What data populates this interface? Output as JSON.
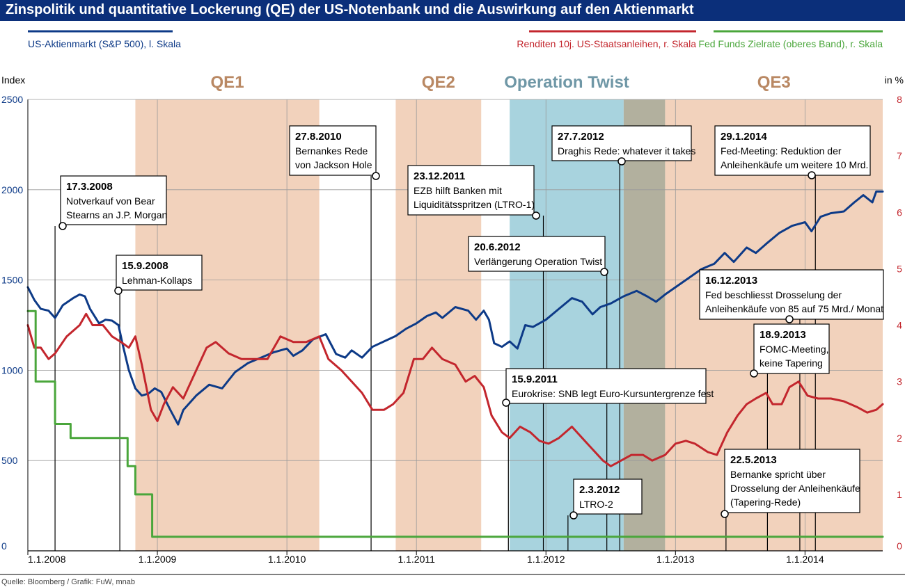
{
  "title": "Zinspolitik und quantitative Lockerung (QE) der US-Notenbank und die Auswirkung auf den Aktienmarkt",
  "source": "Quelle: Bloomberg / Grafik: FuW, mnab",
  "colors": {
    "title_bg": "#0b2f7a",
    "sp500": "#0d3a87",
    "yield": "#c3262d",
    "fed": "#4aa63b",
    "qe": "#f2d2bc",
    "twist": "#a8d3de",
    "overlap": "#b2b09e",
    "period_label_qe": "#b98863",
    "period_label_twist": "#6f97a6"
  },
  "chart_data": {
    "type": "line",
    "x_range": [
      2008.0,
      2014.6
    ],
    "left_axis": {
      "label": "Index",
      "ticks": [
        "0",
        "500",
        "1000",
        "1500",
        "2000",
        "2500"
      ],
      "range": [
        0,
        2500
      ]
    },
    "right_axis": {
      "label": "in %",
      "ticks": [
        "0",
        "1",
        "2",
        "3",
        "4",
        "5",
        "6",
        "7",
        "8"
      ],
      "range": [
        0,
        8
      ]
    },
    "x_ticks": [
      {
        "label": "1.1.2008",
        "x": 2008.0
      },
      {
        "label": "1.1.2009",
        "x": 2009.0
      },
      {
        "label": "1.1.2010",
        "x": 2010.0
      },
      {
        "label": "1.1.2011",
        "x": 2011.0
      },
      {
        "label": "1.1.2012",
        "x": 2012.0
      },
      {
        "label": "1.1.2013",
        "x": 2013.0
      },
      {
        "label": "1.1.2014",
        "x": 2014.0
      }
    ],
    "legend": [
      {
        "name": "US-Aktienmarkt (S&P 500), l. Skala",
        "color": "#0d3a87"
      },
      {
        "name": "Renditen 10j. US-Staatsanleihen, r. Skala",
        "color": "#c3262d"
      },
      {
        "name": "Fed Funds Zielrate (oberes Band), r. Skala",
        "color": "#4aa63b"
      }
    ],
    "periods": [
      {
        "label": "QE1",
        "start": 2008.83,
        "end": 2010.25,
        "color": "#f2d2bc",
        "label_color": "#b98863"
      },
      {
        "label": "QE2",
        "start": 2010.84,
        "end": 2011.5,
        "color": "#f2d2bc",
        "label_color": "#b98863"
      },
      {
        "label": "Operation Twist",
        "start": 2011.72,
        "end": 2012.6,
        "color": "#a8d3de",
        "label_color": "#6f97a6"
      },
      {
        "label": "",
        "start": 2012.6,
        "end": 2012.92,
        "color": "#b2b09e",
        "label_color": "#000000"
      },
      {
        "label": "QE3",
        "start": 2012.92,
        "end": 2014.6,
        "color": "#f2d2bc",
        "label_color": "#b98863"
      }
    ],
    "series": [
      {
        "name": "US-Aktienmarkt (S&P 500)",
        "axis": "left",
        "color": "#0d3a87",
        "points": [
          [
            2008.0,
            1460
          ],
          [
            2008.05,
            1390
          ],
          [
            2008.1,
            1340
          ],
          [
            2008.16,
            1330
          ],
          [
            2008.21,
            1290
          ],
          [
            2008.27,
            1360
          ],
          [
            2008.35,
            1400
          ],
          [
            2008.4,
            1420
          ],
          [
            2008.44,
            1410
          ],
          [
            2008.48,
            1340
          ],
          [
            2008.55,
            1260
          ],
          [
            2008.6,
            1280
          ],
          [
            2008.65,
            1275
          ],
          [
            2008.7,
            1250
          ],
          [
            2008.73,
            1150
          ],
          [
            2008.78,
            1000
          ],
          [
            2008.83,
            900
          ],
          [
            2008.88,
            860
          ],
          [
            2008.93,
            870
          ],
          [
            2008.98,
            900
          ],
          [
            2009.03,
            880
          ],
          [
            2009.1,
            780
          ],
          [
            2009.16,
            700
          ],
          [
            2009.2,
            780
          ],
          [
            2009.3,
            860
          ],
          [
            2009.4,
            920
          ],
          [
            2009.5,
            900
          ],
          [
            2009.6,
            990
          ],
          [
            2009.7,
            1040
          ],
          [
            2009.8,
            1070
          ],
          [
            2009.9,
            1100
          ],
          [
            2010.0,
            1120
          ],
          [
            2010.05,
            1080
          ],
          [
            2010.12,
            1110
          ],
          [
            2010.2,
            1170
          ],
          [
            2010.3,
            1200
          ],
          [
            2010.38,
            1090
          ],
          [
            2010.45,
            1070
          ],
          [
            2010.5,
            1110
          ],
          [
            2010.58,
            1070
          ],
          [
            2010.66,
            1130
          ],
          [
            2010.75,
            1160
          ],
          [
            2010.84,
            1190
          ],
          [
            2010.92,
            1230
          ],
          [
            2011.0,
            1260
          ],
          [
            2011.08,
            1300
          ],
          [
            2011.15,
            1320
          ],
          [
            2011.2,
            1290
          ],
          [
            2011.3,
            1350
          ],
          [
            2011.4,
            1330
          ],
          [
            2011.46,
            1280
          ],
          [
            2011.52,
            1330
          ],
          [
            2011.56,
            1280
          ],
          [
            2011.6,
            1150
          ],
          [
            2011.66,
            1130
          ],
          [
            2011.72,
            1160
          ],
          [
            2011.78,
            1120
          ],
          [
            2011.84,
            1250
          ],
          [
            2011.9,
            1240
          ],
          [
            2012.0,
            1280
          ],
          [
            2012.1,
            1340
          ],
          [
            2012.2,
            1400
          ],
          [
            2012.28,
            1380
          ],
          [
            2012.36,
            1310
          ],
          [
            2012.42,
            1350
          ],
          [
            2012.5,
            1370
          ],
          [
            2012.6,
            1410
          ],
          [
            2012.7,
            1440
          ],
          [
            2012.78,
            1410
          ],
          [
            2012.85,
            1380
          ],
          [
            2012.92,
            1420
          ],
          [
            2013.0,
            1460
          ],
          [
            2013.1,
            1510
          ],
          [
            2013.2,
            1560
          ],
          [
            2013.3,
            1590
          ],
          [
            2013.38,
            1650
          ],
          [
            2013.45,
            1600
          ],
          [
            2013.55,
            1680
          ],
          [
            2013.62,
            1650
          ],
          [
            2013.7,
            1700
          ],
          [
            2013.8,
            1760
          ],
          [
            2013.9,
            1800
          ],
          [
            2014.0,
            1820
          ],
          [
            2014.05,
            1770
          ],
          [
            2014.12,
            1850
          ],
          [
            2014.2,
            1870
          ],
          [
            2014.3,
            1880
          ],
          [
            2014.38,
            1930
          ],
          [
            2014.45,
            1970
          ],
          [
            2014.52,
            1930
          ],
          [
            2014.55,
            1990
          ],
          [
            2014.6,
            1990
          ]
        ]
      },
      {
        "name": "Renditen 10j. US-Staatsanleihen",
        "axis": "right",
        "color": "#c3262d",
        "points": [
          [
            2008.0,
            4.0
          ],
          [
            2008.05,
            3.6
          ],
          [
            2008.1,
            3.6
          ],
          [
            2008.16,
            3.4
          ],
          [
            2008.21,
            3.5
          ],
          [
            2008.3,
            3.8
          ],
          [
            2008.4,
            4.0
          ],
          [
            2008.45,
            4.2
          ],
          [
            2008.5,
            4.0
          ],
          [
            2008.58,
            4.0
          ],
          [
            2008.65,
            3.8
          ],
          [
            2008.72,
            3.7
          ],
          [
            2008.78,
            3.6
          ],
          [
            2008.83,
            3.8
          ],
          [
            2008.88,
            3.3
          ],
          [
            2008.95,
            2.5
          ],
          [
            2009.0,
            2.3
          ],
          [
            2009.05,
            2.6
          ],
          [
            2009.12,
            2.9
          ],
          [
            2009.2,
            2.7
          ],
          [
            2009.3,
            3.2
          ],
          [
            2009.38,
            3.6
          ],
          [
            2009.45,
            3.7
          ],
          [
            2009.55,
            3.5
          ],
          [
            2009.65,
            3.4
          ],
          [
            2009.75,
            3.4
          ],
          [
            2009.85,
            3.4
          ],
          [
            2009.95,
            3.8
          ],
          [
            2010.05,
            3.7
          ],
          [
            2010.15,
            3.7
          ],
          [
            2010.25,
            3.8
          ],
          [
            2010.32,
            3.4
          ],
          [
            2010.42,
            3.2
          ],
          [
            2010.5,
            3.0
          ],
          [
            2010.58,
            2.8
          ],
          [
            2010.66,
            2.5
          ],
          [
            2010.75,
            2.5
          ],
          [
            2010.82,
            2.6
          ],
          [
            2010.9,
            2.8
          ],
          [
            2010.98,
            3.4
          ],
          [
            2011.05,
            3.4
          ],
          [
            2011.12,
            3.6
          ],
          [
            2011.2,
            3.4
          ],
          [
            2011.3,
            3.3
          ],
          [
            2011.38,
            3.0
          ],
          [
            2011.45,
            3.1
          ],
          [
            2011.52,
            2.9
          ],
          [
            2011.58,
            2.4
          ],
          [
            2011.66,
            2.1
          ],
          [
            2011.72,
            2.0
          ],
          [
            2011.8,
            2.2
          ],
          [
            2011.88,
            2.1
          ],
          [
            2011.95,
            1.95
          ],
          [
            2012.02,
            1.9
          ],
          [
            2012.1,
            2.0
          ],
          [
            2012.2,
            2.2
          ],
          [
            2012.28,
            2.0
          ],
          [
            2012.36,
            1.8
          ],
          [
            2012.44,
            1.6
          ],
          [
            2012.5,
            1.5
          ],
          [
            2012.58,
            1.6
          ],
          [
            2012.66,
            1.7
          ],
          [
            2012.75,
            1.7
          ],
          [
            2012.82,
            1.6
          ],
          [
            2012.92,
            1.7
          ],
          [
            2013.0,
            1.9
          ],
          [
            2013.08,
            1.95
          ],
          [
            2013.15,
            1.9
          ],
          [
            2013.25,
            1.75
          ],
          [
            2013.32,
            1.7
          ],
          [
            2013.4,
            2.1
          ],
          [
            2013.48,
            2.4
          ],
          [
            2013.55,
            2.6
          ],
          [
            2013.62,
            2.7
          ],
          [
            2013.7,
            2.8
          ],
          [
            2013.75,
            2.6
          ],
          [
            2013.82,
            2.6
          ],
          [
            2013.88,
            2.9
          ],
          [
            2013.95,
            3.0
          ],
          [
            2014.02,
            2.75
          ],
          [
            2014.1,
            2.7
          ],
          [
            2014.2,
            2.7
          ],
          [
            2014.3,
            2.65
          ],
          [
            2014.4,
            2.55
          ],
          [
            2014.48,
            2.45
          ],
          [
            2014.55,
            2.5
          ],
          [
            2014.6,
            2.6
          ]
        ]
      },
      {
        "name": "Fed Funds Zielrate (oberes Band)",
        "axis": "right",
        "color": "#4aa63b",
        "step": true,
        "points": [
          [
            2008.0,
            4.25
          ],
          [
            2008.06,
            3.0
          ],
          [
            2008.21,
            2.25
          ],
          [
            2008.33,
            2.0
          ],
          [
            2008.77,
            1.5
          ],
          [
            2008.83,
            1.0
          ],
          [
            2008.96,
            0.25
          ],
          [
            2014.6,
            0.25
          ]
        ]
      }
    ],
    "annotations": [
      {
        "date": "17.3.2008",
        "lines": [
          "Notverkauf von Bear",
          "Stearns an J.P. Morgan"
        ],
        "x": 2008.21
      },
      {
        "date": "15.9.2008",
        "lines": [
          "Lehman-Kollaps"
        ],
        "x": 2008.71
      },
      {
        "date": "27.8.2010",
        "lines": [
          "Bernankes Rede",
          "von Jackson Hole"
        ],
        "x": 2010.65
      },
      {
        "date": "23.12.2011",
        "lines": [
          "EZB hilft Banken mit",
          "Liquiditätsspritzen (LTRO-1)"
        ],
        "x": 2011.98
      },
      {
        "date": "20.6.2012",
        "lines": [
          "Verlängerung Operation Twist"
        ],
        "x": 2012.47
      },
      {
        "date": "27.7.2012",
        "lines": [
          "Draghis Rede: whatever it takes"
        ],
        "x": 2012.57
      },
      {
        "date": "15.9.2011",
        "lines": [
          "Eurokrise: SNB legt Euro-Kursuntergrenze fest"
        ],
        "x": 2011.71
      },
      {
        "date": "2.3.2012",
        "lines": [
          "LTRO-2"
        ],
        "x": 2012.17
      },
      {
        "date": "29.1.2014",
        "lines": [
          "Fed-Meeting: Reduktion der",
          "Anleihenkäufe um weitere 10 Mrd."
        ],
        "x": 2014.08
      },
      {
        "date": "16.12.2013",
        "lines": [
          "Fed beschliesst Drosselung der",
          "Anleihenkäufe von 85 auf 75 Mrd./ Monat"
        ],
        "x": 2013.96
      },
      {
        "date": "18.9.2013",
        "lines": [
          "FOMC-Meeting,",
          "keine Tapering"
        ],
        "x": 2013.71
      },
      {
        "date": "22.5.2013",
        "lines": [
          "Bernanke spricht über",
          "Drosselung der Anleihenkäufe",
          "(Tapering-Rede)"
        ],
        "x": 2013.39
      }
    ]
  }
}
